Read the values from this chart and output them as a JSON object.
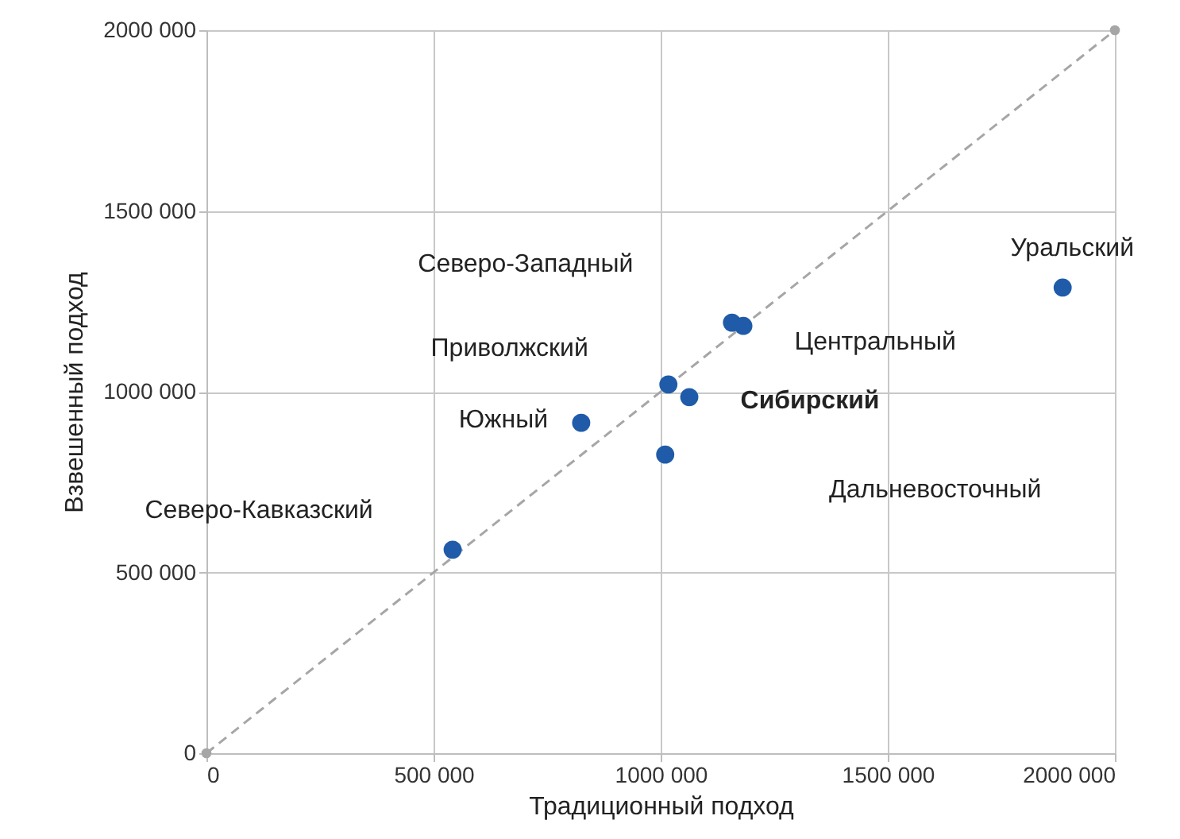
{
  "chart_data": {
    "type": "scatter",
    "xlabel": "Традиционный подход",
    "ylabel": "Взвешенный подход",
    "xlim": [
      0,
      2000000
    ],
    "ylim": [
      0,
      2000000
    ],
    "xticks": [
      0,
      {
        "value": 500000,
        "label": "500 000"
      },
      {
        "value": 1000000,
        "label": "1000 000"
      },
      {
        "value": 1500000,
        "label": "1500 000"
      },
      {
        "value": 2000000,
        "label": "2000 000"
      }
    ],
    "yticks": [
      0,
      {
        "value": 500000,
        "label": "500 000"
      },
      {
        "value": 1000000,
        "label": "1000 000"
      },
      {
        "value": 1500000,
        "label": "1500 000"
      },
      {
        "value": 2000000,
        "label": "2000 000"
      }
    ],
    "grid": true,
    "marker": "circle",
    "series": [
      {
        "type": "line",
        "color": "#a6a6a6",
        "line_style": "dashed",
        "x": [
          0,
          2000000
        ],
        "values": [
          0,
          2000000
        ]
      },
      {
        "color": "#1f5ba8",
        "x": [
          542000,
          825000,
          1017000,
          1157000,
          1182000,
          1063000,
          1010000,
          1885000
        ],
        "values": [
          563000,
          914000,
          1020000,
          1191000,
          1182000,
          985000,
          826000,
          1288000
        ]
      }
    ],
    "annotations": [
      "Северо-Кавказский",
      "Южный",
      "Приволжский",
      "Северо-Западный",
      "Центральный",
      "Сибирский",
      "Дальневосточный",
      "Уральский"
    ]
  }
}
